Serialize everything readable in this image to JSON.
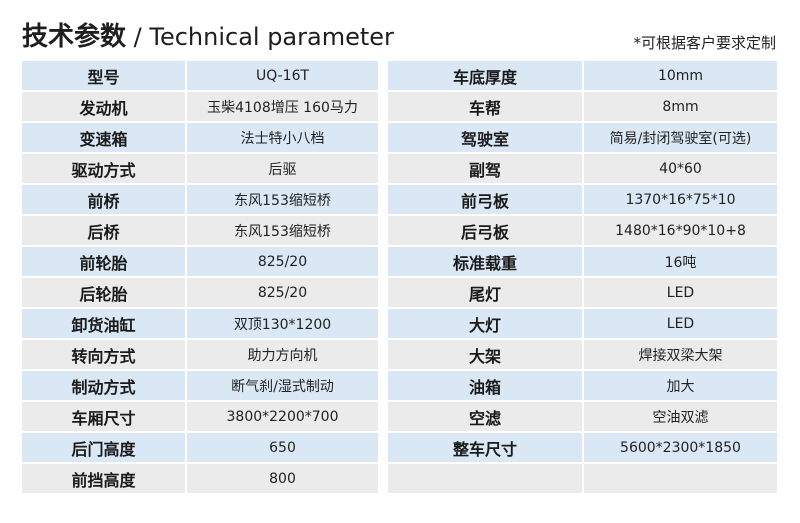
{
  "header": {
    "title_cn": "技术参数",
    "title_sep": " / ",
    "title_en": "Technical parameter",
    "note": "*可根据客户要求定制"
  },
  "colors": {
    "row_blue": "#dae8f5",
    "row_grey": "#ebebeb"
  },
  "left": [
    {
      "k": "型号",
      "v": "UQ-16T"
    },
    {
      "k": "发动机",
      "v": "玉柴4108增压  160马力"
    },
    {
      "k": "变速箱",
      "v": "法士特小八档"
    },
    {
      "k": "驱动方式",
      "v": "后驱"
    },
    {
      "k": "前桥",
      "v": "东风153缩短桥"
    },
    {
      "k": "后桥",
      "v": "东风153缩短桥"
    },
    {
      "k": "前轮胎",
      "v": "825/20"
    },
    {
      "k": "后轮胎",
      "v": "825/20"
    },
    {
      "k": "卸货油缸",
      "v": "双顶130*1200"
    },
    {
      "k": "转向方式",
      "v": "助力方向机"
    },
    {
      "k": "制动方式",
      "v": "断气刹/湿式制动"
    },
    {
      "k": "车厢尺寸",
      "v": "3800*2200*700"
    },
    {
      "k": "后门高度",
      "v": "650"
    },
    {
      "k": "前挡高度",
      "v": "800"
    }
  ],
  "right": [
    {
      "k": "车底厚度",
      "v": "10mm"
    },
    {
      "k": "车帮",
      "v": "8mm"
    },
    {
      "k": "驾驶室",
      "v": "简易/封闭驾驶室(可选)"
    },
    {
      "k": "副驾",
      "v": "40*60"
    },
    {
      "k": "前弓板",
      "v": "1370*16*75*10"
    },
    {
      "k": "后弓板",
      "v": "1480*16*90*10+8"
    },
    {
      "k": "标准载重",
      "v": "16吨"
    },
    {
      "k": "尾灯",
      "v": "LED"
    },
    {
      "k": "大灯",
      "v": "LED"
    },
    {
      "k": "大架",
      "v": "焊接双梁大架"
    },
    {
      "k": "油箱",
      "v": "加大"
    },
    {
      "k": "空滤",
      "v": "空油双滤"
    },
    {
      "k": "整车尺寸",
      "v": "5600*2300*1850"
    },
    {
      "k": "",
      "v": ""
    }
  ]
}
